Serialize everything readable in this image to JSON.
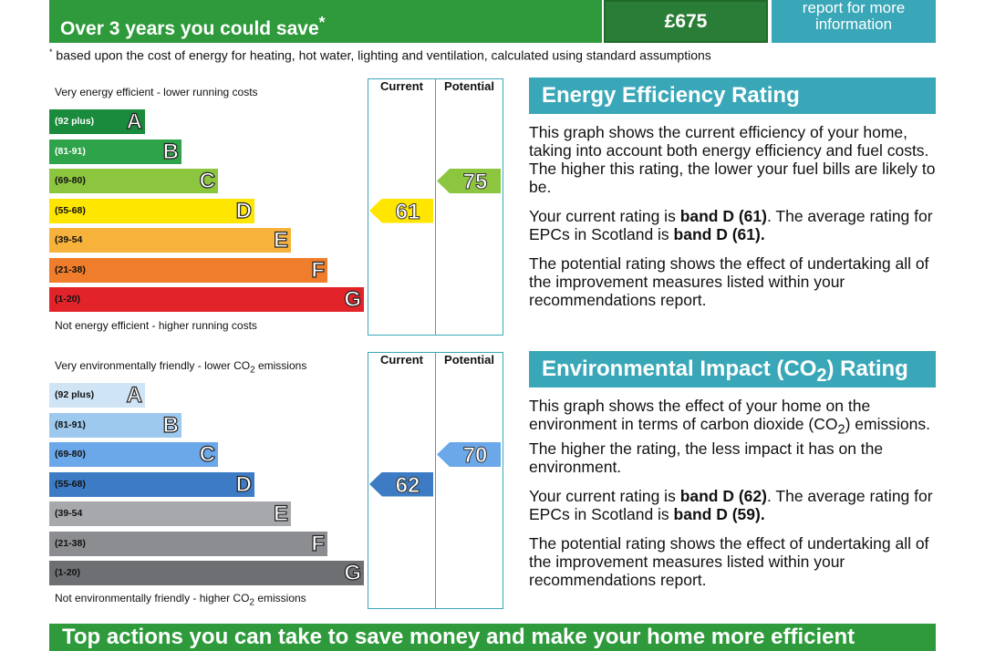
{
  "savings": {
    "label": "Over 3 years you could save",
    "label_mark": "*",
    "value": "£675",
    "report_line1": "report for more",
    "report_line2": "information"
  },
  "footnote": {
    "mark": "*",
    "text": " based upon the cost of energy for heating, hot water, lighting and ventilation, calculated using standard assumptions"
  },
  "energy_graph": {
    "top_label": "Very energy efficient - lower running costs",
    "bottom_label": "Not energy efficient - higher running costs",
    "col_current": "Current",
    "col_potential": "Potential",
    "bands": [
      {
        "range": "(92 plus)",
        "letter": "A",
        "color": "#1a8a3c",
        "light": true
      },
      {
        "range": "(81-91)",
        "letter": "B",
        "color": "#2ea34a",
        "light": true
      },
      {
        "range": "(69-80)",
        "letter": "C",
        "color": "#8cc63f",
        "light": false
      },
      {
        "range": "(55-68)",
        "letter": "D",
        "color": "#ffe600",
        "light": false
      },
      {
        "range": "(39-54",
        "letter": "E",
        "color": "#f7b23b",
        "light": false
      },
      {
        "range": "(21-38)",
        "letter": "F",
        "color": "#ef7d2b",
        "light": false
      },
      {
        "range": "(1-20)",
        "letter": "G",
        "color": "#e3232a",
        "light": false
      }
    ],
    "current": {
      "value": "61",
      "band_index": 3,
      "color": "#ffe600"
    },
    "potential": {
      "value": "75",
      "band_index": 2,
      "color": "#8cc63f"
    }
  },
  "env_graph": {
    "top_label_pre": "Very environmentally friendly - lower CO",
    "top_label_sub": "2",
    "top_label_post": " emissions",
    "bottom_label_pre": "Not environmentally friendly - higher CO",
    "bottom_label_sub": "2",
    "bottom_label_post": " emissions",
    "col_current": "Current",
    "col_potential": "Potential",
    "bands": [
      {
        "range": "(92 plus)",
        "letter": "A",
        "color": "#cfe4f5",
        "light": false
      },
      {
        "range": "(81-91)",
        "letter": "B",
        "color": "#9ec9ef",
        "light": false
      },
      {
        "range": "(69-80)",
        "letter": "C",
        "color": "#6aa8ea",
        "light": false
      },
      {
        "range": "(55-68)",
        "letter": "D",
        "color": "#3d7cc4",
        "light": false
      },
      {
        "range": "(39-54",
        "letter": "E",
        "color": "#a6a8ab",
        "light": false
      },
      {
        "range": "(21-38)",
        "letter": "F",
        "color": "#8b8d90",
        "light": false
      },
      {
        "range": "(1-20)",
        "letter": "G",
        "color": "#6d6f72",
        "light": false
      }
    ],
    "current": {
      "value": "62",
      "band_index": 3,
      "color": "#3d7cc4"
    },
    "potential": {
      "value": "70",
      "band_index": 2,
      "color": "#6aa8ea"
    }
  },
  "energy_panel": {
    "title": "Energy Efficiency Rating",
    "p1": "This graph shows the current efficiency of your home, taking into account both energy efficiency and fuel costs. The higher this rating, the lower your fuel bills are likely to be.",
    "p2_a": "Your current rating is ",
    "p2_b": "band D (61)",
    "p2_c": ". The average rating for EPCs in Scotland is ",
    "p2_d": "band D (61).",
    "p3": "The potential rating shows the effect of undertaking all of the improvement measures listed within your recommendations report."
  },
  "env_panel": {
    "title_pre": "Environmental Impact (CO",
    "title_sub": "2",
    "title_post": ") Rating",
    "p1_a": "This graph shows the effect of your home on the environment in terms of carbon dioxide (CO",
    "p1_sub": "2",
    "p1_b": ") emissions. The higher the rating, the less impact it has on the environment.",
    "p2_a": "Your current rating is ",
    "p2_b": "band D (62)",
    "p2_c": ". The average rating for EPCs in Scotland is ",
    "p2_d": "band D (59).",
    "p3": "The potential rating shows the effect of undertaking all of the improvement measures listed within your recommendations report."
  },
  "bottom_heading": "Top actions you can take to save money and make your home more efficient"
}
